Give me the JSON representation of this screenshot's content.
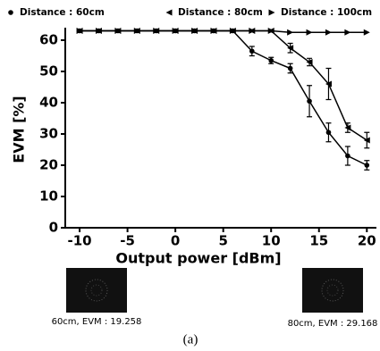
{
  "chart_data": {
    "type": "line",
    "x_label": "Output power [dBm]",
    "y_label": "EVM [%]",
    "x": [
      -10,
      -8,
      -6,
      -4,
      -2,
      0,
      2,
      4,
      6,
      8,
      10,
      12,
      14,
      16,
      18,
      20
    ],
    "series": [
      {
        "name": "Distance : 60cm",
        "color": "#000000",
        "marker": "circle",
        "values": [
          63,
          63,
          63,
          63,
          63,
          63,
          63,
          63,
          63,
          56.5,
          53.5,
          51,
          40.5,
          30.5,
          23,
          20
        ],
        "errors": [
          null,
          null,
          null,
          null,
          null,
          null,
          null,
          null,
          null,
          1.5,
          1,
          1.5,
          5,
          3,
          3,
          1.5
        ]
      },
      {
        "name": "Distance : 80cm",
        "color": "#000000",
        "marker": "triangle-left",
        "values": [
          63,
          63,
          63,
          63,
          63,
          63,
          63,
          63,
          63,
          63,
          63,
          57.5,
          53,
          46,
          32,
          28
        ],
        "errors": [
          null,
          null,
          null,
          null,
          null,
          null,
          null,
          null,
          null,
          null,
          null,
          1.5,
          1.2,
          5,
          1.5,
          2.5
        ]
      },
      {
        "name": "Distance : 100cm",
        "color": "#000000",
        "marker": "triangle-right",
        "values": [
          63,
          63,
          63,
          63,
          63,
          63,
          63,
          63,
          63,
          63,
          63,
          62.5,
          62.5,
          62.5,
          62.5,
          62.5
        ],
        "errors": [
          null,
          null,
          null,
          null,
          null,
          null,
          null,
          null,
          null,
          null,
          null,
          null,
          null,
          null,
          null,
          null
        ]
      }
    ],
    "xlim": [
      -11.5,
      21
    ],
    "ylim": [
      0,
      64
    ],
    "xticks": [
      -10,
      -5,
      0,
      5,
      10,
      15,
      20
    ],
    "yticks": [
      0,
      10,
      20,
      30,
      40,
      50,
      60
    ]
  },
  "insets": [
    {
      "caption": "60cm, EVM : 19.258"
    },
    {
      "caption": "80cm, EVM : 29.168"
    }
  ],
  "figure_label": "(a)"
}
